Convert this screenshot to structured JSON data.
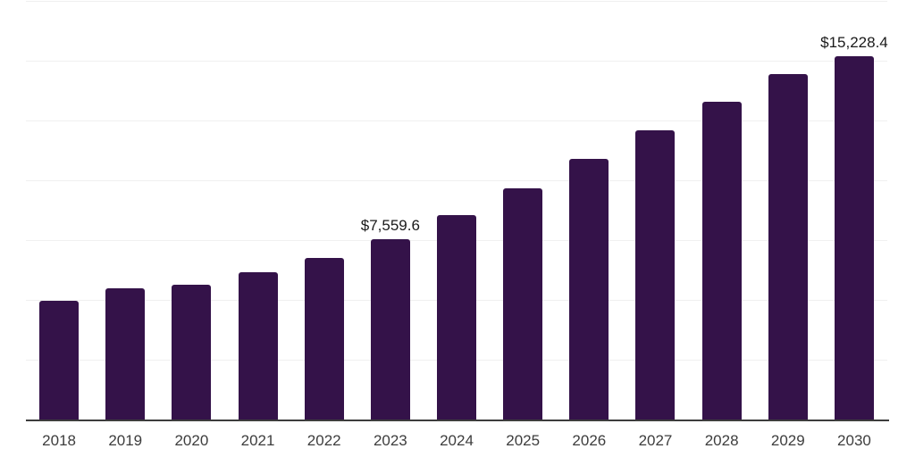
{
  "chart_data": {
    "type": "bar",
    "title": "",
    "xlabel": "",
    "ylabel": "",
    "categories": [
      "2018",
      "2019",
      "2020",
      "2021",
      "2022",
      "2023",
      "2024",
      "2025",
      "2026",
      "2027",
      "2028",
      "2029",
      "2030"
    ],
    "values": [
      5010,
      5530,
      5685,
      6205,
      6805,
      7559.6,
      8600,
      9720,
      10920,
      12115,
      13310,
      14470,
      15228.4
    ],
    "data_labels": {
      "2023": "$7,559.6",
      "2030": "$15,228.4"
    },
    "ylim": [
      0,
      17500
    ],
    "y_gridline_interval": 2500,
    "grid": true,
    "legend": false,
    "y_axis_labels_visible": false,
    "colors": {
      "bar": "#341249",
      "gridline": "#f0f0f0",
      "axis": "#3d3d3d",
      "value_label": "#1a1a1a",
      "tick_label": "#3d3d3d",
      "background": "#ffffff"
    }
  }
}
